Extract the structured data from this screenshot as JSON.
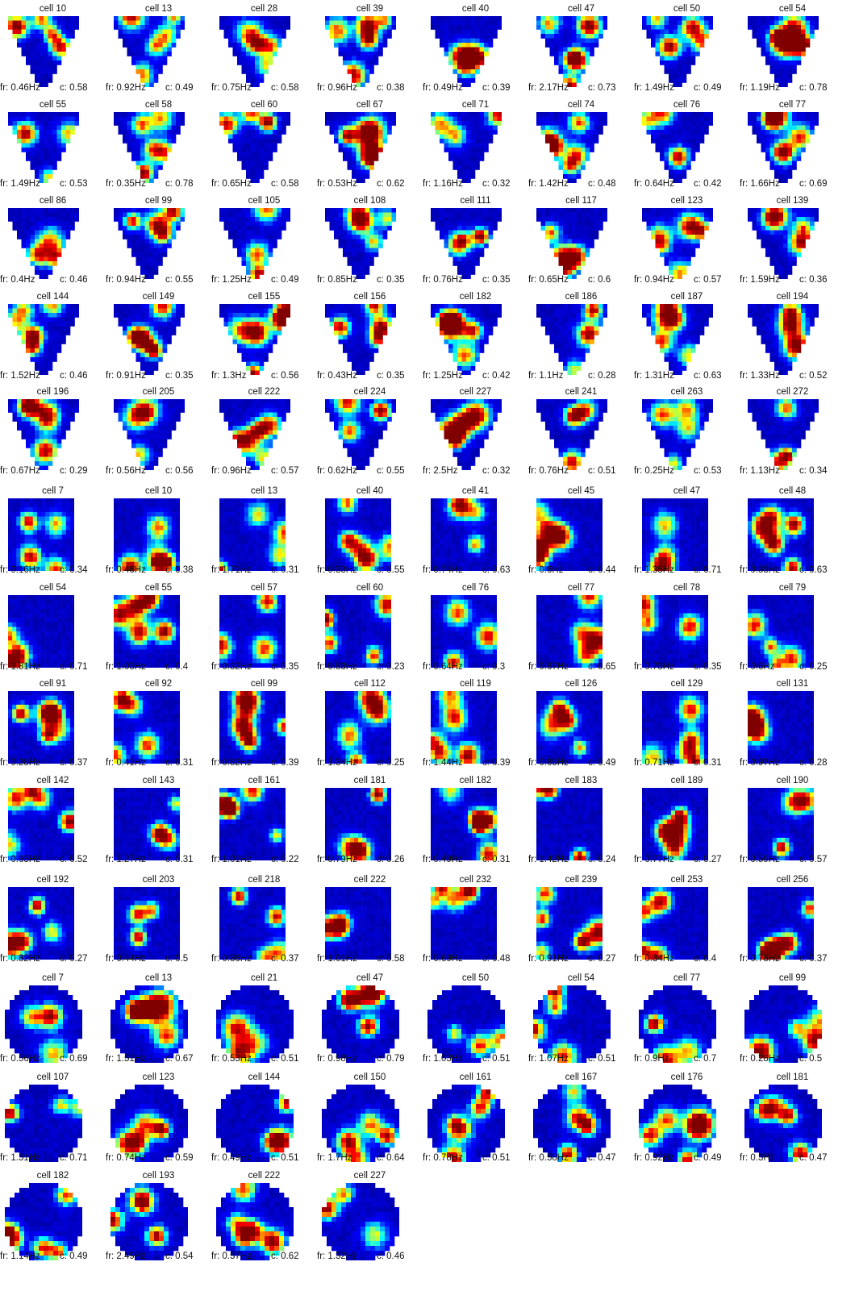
{
  "figure": {
    "groups": [
      {
        "shape": "triangle",
        "cells": [
          {
            "title": "cell 10",
            "fr": "fr: 0.46Hz",
            "c": "c: 0.58"
          },
          {
            "title": "cell 13",
            "fr": "fr: 0.92Hz",
            "c": "c: 0.49"
          },
          {
            "title": "cell 28",
            "fr": "fr: 0.75Hz",
            "c": "c: 0.58"
          },
          {
            "title": "cell 39",
            "fr": "fr: 0.96Hz",
            "c": "c: 0.38"
          },
          {
            "title": "cell 40",
            "fr": "fr: 0.49Hz",
            "c": "c: 0.39"
          },
          {
            "title": "cell 47",
            "fr": "fr: 2.17Hz",
            "c": "c: 0.73"
          },
          {
            "title": "cell 50",
            "fr": "fr: 1.49Hz",
            "c": "c: 0.49"
          },
          {
            "title": "cell 54",
            "fr": "fr: 1.19Hz",
            "c": "c: 0.78"
          },
          {
            "title": "cell 55",
            "fr": "fr: 1.49Hz",
            "c": "c: 0.53"
          },
          {
            "title": "cell 58",
            "fr": "fr: 0.35Hz",
            "c": "c: 0.78"
          },
          {
            "title": "cell 60",
            "fr": "fr: 0.65Hz",
            "c": "c: 0.58"
          },
          {
            "title": "cell 67",
            "fr": "fr: 0.53Hz",
            "c": "c: 0.62"
          },
          {
            "title": "cell 71",
            "fr": "fr: 1.16Hz",
            "c": "c: 0.32"
          },
          {
            "title": "cell 74",
            "fr": "fr: 1.42Hz",
            "c": "c: 0.48"
          },
          {
            "title": "cell 76",
            "fr": "fr: 0.64Hz",
            "c": "c: 0.42"
          },
          {
            "title": "cell 77",
            "fr": "fr: 1.66Hz",
            "c": "c: 0.69"
          },
          {
            "title": "cell 86",
            "fr": "fr: 0.4Hz",
            "c": "c: 0.46"
          },
          {
            "title": "cell 99",
            "fr": "fr: 0.94Hz",
            "c": "c: 0.55"
          },
          {
            "title": "cell 105",
            "fr": "fr: 1.25Hz",
            "c": "c: 0.49"
          },
          {
            "title": "cell 108",
            "fr": "fr: 0.85Hz",
            "c": "c: 0.35"
          },
          {
            "title": "cell 111",
            "fr": "fr: 0.76Hz",
            "c": "c: 0.35"
          },
          {
            "title": "cell 117",
            "fr": "fr: 0.65Hz",
            "c": "c: 0.6"
          },
          {
            "title": "cell 123",
            "fr": "fr: 0.94Hz",
            "c": "c: 0.57"
          },
          {
            "title": "cell 139",
            "fr": "fr: 1.59Hz",
            "c": "c: 0.36"
          },
          {
            "title": "cell 144",
            "fr": "fr: 1.52Hz",
            "c": "c: 0.46"
          },
          {
            "title": "cell 149",
            "fr": "fr: 0.91Hz",
            "c": "c: 0.35"
          },
          {
            "title": "cell 155",
            "fr": "fr: 1.3Hz",
            "c": "c: 0.56"
          },
          {
            "title": "cell 156",
            "fr": "fr: 0.43Hz",
            "c": "c: 0.35"
          },
          {
            "title": "cell 182",
            "fr": "fr: 1.25Hz",
            "c": "c: 0.42"
          },
          {
            "title": "cell 186",
            "fr": "fr: 1.1Hz",
            "c": "c: 0.28"
          },
          {
            "title": "cell 187",
            "fr": "fr: 1.31Hz",
            "c": "c: 0.63"
          },
          {
            "title": "cell 194",
            "fr": "fr: 1.33Hz",
            "c": "c: 0.52"
          },
          {
            "title": "cell 196",
            "fr": "fr: 0.67Hz",
            "c": "c: 0.29"
          },
          {
            "title": "cell 205",
            "fr": "fr: 0.56Hz",
            "c": "c: 0.56"
          },
          {
            "title": "cell 222",
            "fr": "fr: 0.96Hz",
            "c": "c: 0.57"
          },
          {
            "title": "cell 224",
            "fr": "fr: 0.62Hz",
            "c": "c: 0.55"
          },
          {
            "title": "cell 227",
            "fr": "fr: 2.5Hz",
            "c": "c: 0.32"
          },
          {
            "title": "cell 241",
            "fr": "fr: 0.76Hz",
            "c": "c: 0.51"
          },
          {
            "title": "cell 263",
            "fr": "fr: 0.25Hz",
            "c": "c: 0.53"
          },
          {
            "title": "cell 272",
            "fr": "fr: 1.13Hz",
            "c": "c: 0.34"
          }
        ]
      },
      {
        "shape": "square",
        "cells": [
          {
            "title": "cell 7",
            "fr": "fr: 0.16Hz",
            "c": "c: 0.34"
          },
          {
            "title": "cell 10",
            "fr": "fr: 0.46Hz",
            "c": "c: 0.38"
          },
          {
            "title": "cell 13",
            "fr": "fr: 1.71Hz",
            "c": "c: 0.31"
          },
          {
            "title": "cell 40",
            "fr": "fr: 0.33Hz",
            "c": "c: 0.55"
          },
          {
            "title": "cell 41",
            "fr": "fr: 0.74Hz",
            "c": "c: 0.63"
          },
          {
            "title": "cell 45",
            "fr": "fr: 0.6Hz",
            "c": "c: 0.44"
          },
          {
            "title": "cell 47",
            "fr": "fr: 1.35Hz",
            "c": "c: 0.71"
          },
          {
            "title": "cell 48",
            "fr": "fr: 0.83Hz",
            "c": "c: 0.63"
          },
          {
            "title": "cell 54",
            "fr": "fr: 1.81Hz",
            "c": "c: 0.71"
          },
          {
            "title": "cell 55",
            "fr": "fr: 1.03Hz",
            "c": "c: 0.4"
          },
          {
            "title": "cell 57",
            "fr": "fr: 0.32Hz",
            "c": "c: 0.35"
          },
          {
            "title": "cell 60",
            "fr": "fr: 0.83Hz",
            "c": "c: 0.23"
          },
          {
            "title": "cell 76",
            "fr": "fr: 0.64Hz",
            "c": "c: 0.3"
          },
          {
            "title": "cell 77",
            "fr": "fr: 0.67Hz",
            "c": "c: 0.65"
          },
          {
            "title": "cell 78",
            "fr": "fr: 0.73Hz",
            "c": "c: 0.35"
          },
          {
            "title": "cell 79",
            "fr": "fr: 0.6Hz",
            "c": "c: 0.25"
          },
          {
            "title": "cell 91",
            "fr": "fr: 0.28Hz",
            "c": "c: 0.37"
          },
          {
            "title": "cell 92",
            "fr": "fr: 0.41Hz",
            "c": "c: 0.31"
          },
          {
            "title": "cell 99",
            "fr": "fr: 0.82Hz",
            "c": "c: 0.39"
          },
          {
            "title": "cell 112",
            "fr": "fr: 1.34Hz",
            "c": "c: 0.25"
          },
          {
            "title": "cell 119",
            "fr": "fr: 1.44Hz",
            "c": "c: 0.39"
          },
          {
            "title": "cell 126",
            "fr": "fr: 0.65Hz",
            "c": "c: 0.49"
          },
          {
            "title": "cell 129",
            "fr": "fr: 0.71Hz",
            "c": "c: 0.31"
          },
          {
            "title": "cell 131",
            "fr": "fr: 0.97Hz",
            "c": "c: 0.28"
          },
          {
            "title": "cell 142",
            "fr": "fr: 0.63Hz",
            "c": "c: 0.52"
          },
          {
            "title": "cell 143",
            "fr": "fr: 1.27Hz",
            "c": "c: 0.31"
          },
          {
            "title": "cell 161",
            "fr": "fr: 1.01Hz",
            "c": "c: 0.22"
          },
          {
            "title": "cell 181",
            "fr": "fr: 0.79Hz",
            "c": "c: 0.26"
          },
          {
            "title": "cell 182",
            "fr": "fr: 0.49Hz",
            "c": "c: 0.31"
          },
          {
            "title": "cell 183",
            "fr": "fr: 1.42Hz",
            "c": "c: 0.24"
          },
          {
            "title": "cell 189",
            "fr": "fr: 0.77Hz",
            "c": "c: 0.27"
          },
          {
            "title": "cell 190",
            "fr": "fr: 0.59Hz",
            "c": "c: 0.57"
          },
          {
            "title": "cell 192",
            "fr": "fr: 0.82Hz",
            "c": "c: 0.27"
          },
          {
            "title": "cell 203",
            "fr": "fr: 0.44Hz",
            "c": "c: 0.5"
          },
          {
            "title": "cell 218",
            "fr": "fr: 0.86Hz",
            "c": "c: 0.37"
          },
          {
            "title": "cell 222",
            "fr": "fr: 1.01Hz",
            "c": "c: 0.58"
          },
          {
            "title": "cell 232",
            "fr": "fr: 0.69Hz",
            "c": "c: 0.48"
          },
          {
            "title": "cell 239",
            "fr": "fr: 0.91Hz",
            "c": "c: 0.27"
          },
          {
            "title": "cell 253",
            "fr": "fr: 0.34Hz",
            "c": "c: 0.4"
          },
          {
            "title": "cell 256",
            "fr": "fr: 0.78Hz",
            "c": "c: 0.37"
          }
        ]
      },
      {
        "shape": "circle",
        "cells": [
          {
            "title": "cell 7",
            "fr": "fr: 0.56Hz",
            "c": "c: 0.69"
          },
          {
            "title": "cell 13",
            "fr": "fr: 1.51Hz",
            "c": "c: 0.67"
          },
          {
            "title": "cell 21",
            "fr": "fr: 0.53Hz",
            "c": "c: 0.51"
          },
          {
            "title": "cell 47",
            "fr": "fr: 0.98Hz",
            "c": "c: 0.79"
          },
          {
            "title": "cell 50",
            "fr": "fr: 1.03Hz",
            "c": "c: 0.51"
          },
          {
            "title": "cell 54",
            "fr": "fr: 1.07Hz",
            "c": "c: 0.51"
          },
          {
            "title": "cell 77",
            "fr": "fr: 0.9Hz",
            "c": "c: 0.7"
          },
          {
            "title": "cell 99",
            "fr": "fr: 0.28Hz",
            "c": "c: 0.5"
          },
          {
            "title": "cell 107",
            "fr": "fr: 1.31Hz",
            "c": "c: 0.71"
          },
          {
            "title": "cell 123",
            "fr": "fr: 0.74Hz",
            "c": "c: 0.59"
          },
          {
            "title": "cell 144",
            "fr": "fr: 0.49Hz",
            "c": "c: 0.51"
          },
          {
            "title": "cell 150",
            "fr": "fr: 1.7Hz",
            "c": "c: 0.64"
          },
          {
            "title": "cell 161",
            "fr": "fr: 0.78Hz",
            "c": "c: 0.51"
          },
          {
            "title": "cell 167",
            "fr": "fr: 0.58Hz",
            "c": "c: 0.47"
          },
          {
            "title": "cell 176",
            "fr": "fr: 0.92Hz",
            "c": "c: 0.49"
          },
          {
            "title": "cell 181",
            "fr": "fr: 0.3Hz",
            "c": "c: 0.47"
          },
          {
            "title": "cell 182",
            "fr": "fr: 1.14Hz",
            "c": "c: 0.49"
          },
          {
            "title": "cell 193",
            "fr": "fr: 2.49Hz",
            "c": "c: 0.54"
          },
          {
            "title": "cell 222",
            "fr": "fr: 0.57Hz",
            "c": "c: 0.62"
          },
          {
            "title": "cell 227",
            "fr": "fr: 1.32Hz",
            "c": "c: 0.46"
          }
        ]
      }
    ],
    "colormap": [
      "#00008f",
      "#0000ff",
      "#00ffff",
      "#ffff00",
      "#ff0000",
      "#800000"
    ]
  },
  "chart_data": {
    "type": "heatmap",
    "description_panels": "grid of firing-rate maps, 8 per row",
    "shapes": [
      "triangle",
      "square",
      "circle"
    ],
    "counts": {
      "triangle": 40,
      "square": 40,
      "circle": 20
    }
  }
}
